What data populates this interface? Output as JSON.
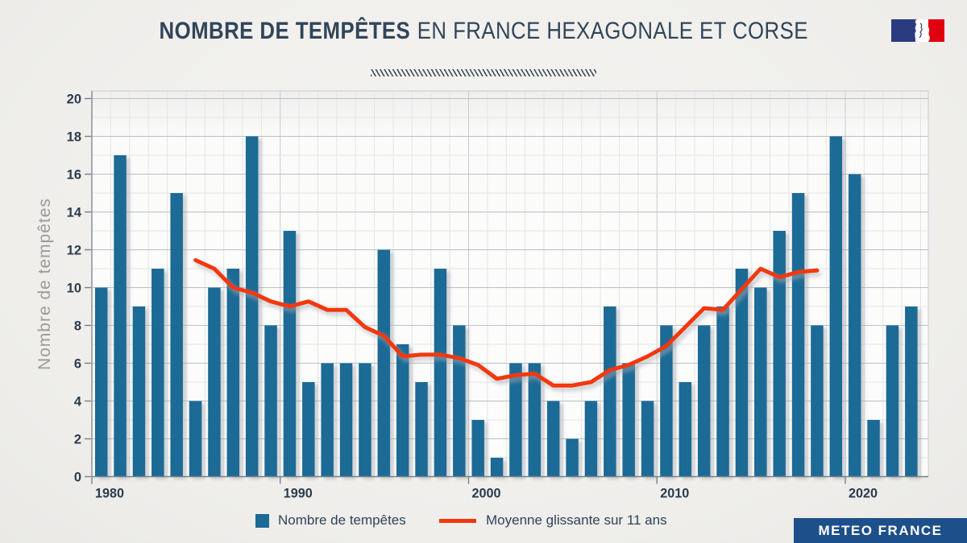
{
  "header": {
    "title_bold": "NOMBRE DE TEMPÊTES",
    "title_regular": "EN FRANCE HEXAGONALE ET CORSE"
  },
  "logo": {
    "label": "République Française (Marianne)"
  },
  "legend": {
    "bars_label": "Nombre de tempêtes",
    "line_label": "Moyenne glissante sur 11 ans"
  },
  "footer": {
    "brand": "METEO FRANCE"
  },
  "colors": {
    "bar": "#1d6a96",
    "line": "#f2390d",
    "title": "#31455a",
    "axis_text": "#2b3b4c",
    "y_axis_title": "#9b9b99",
    "banner": "#1d4f8b",
    "grid_major": "#b9c0c7",
    "grid_minor": "#e2e5e8",
    "grid_decade": "#c6cbd1",
    "axis_line": "#78818b",
    "flag_blue": "#2a3b80",
    "flag_red": "#e1000f"
  },
  "chart_data": {
    "type": "bar",
    "title": "Nombre de tempêtes en France hexagonale et Corse",
    "xlabel": "",
    "ylabel": "Nombre de tempêtes",
    "ylim": [
      0,
      20
    ],
    "ytick_step": 2,
    "grid": true,
    "legend_position": "bottom",
    "xticks": [
      1980,
      1990,
      2000,
      2010,
      2020
    ],
    "categories": [
      1980,
      1981,
      1982,
      1983,
      1984,
      1985,
      1986,
      1987,
      1988,
      1989,
      1990,
      1991,
      1992,
      1993,
      1994,
      1995,
      1996,
      1997,
      1998,
      1999,
      2000,
      2001,
      2002,
      2003,
      2004,
      2005,
      2006,
      2007,
      2008,
      2009,
      2010,
      2011,
      2012,
      2013,
      2014,
      2015,
      2016,
      2017,
      2018,
      2019,
      2020,
      2021,
      2022,
      2023
    ],
    "series": [
      {
        "name": "Nombre de tempêtes",
        "type": "bar",
        "color": "#1d6a96",
        "values": [
          10,
          17,
          9,
          11,
          15,
          4,
          10,
          11,
          18,
          8,
          13,
          5,
          6,
          6,
          6,
          12,
          7,
          5,
          11,
          8,
          3,
          1,
          6,
          6,
          4,
          2,
          4,
          9,
          6,
          4,
          8,
          5,
          8,
          9,
          11,
          10,
          13,
          15,
          8,
          18,
          16,
          3,
          8,
          9
        ]
      },
      {
        "name": "Moyenne glissante sur 11 ans",
        "type": "line",
        "color": "#f2390d",
        "x": [
          1985,
          1986,
          1987,
          1988,
          1989,
          1990,
          1991,
          1992,
          1993,
          1994,
          1995,
          1996,
          1997,
          1998,
          1999,
          2000,
          2001,
          2002,
          2003,
          2004,
          2005,
          2006,
          2007,
          2008,
          2009,
          2010,
          2011,
          2012,
          2013,
          2014,
          2015,
          2016,
          2017,
          2018
        ],
        "values": [
          11.45,
          11.0,
          10.0,
          9.73,
          9.27,
          9.0,
          9.27,
          8.82,
          8.82,
          7.91,
          7.45,
          6.36,
          6.45,
          6.45,
          6.27,
          5.91,
          5.18,
          5.36,
          5.45,
          4.82,
          4.82,
          5.0,
          5.64,
          5.91,
          6.36,
          6.91,
          7.91,
          8.91,
          8.82,
          9.91,
          11.0,
          10.55,
          10.82,
          10.91
        ]
      }
    ]
  }
}
